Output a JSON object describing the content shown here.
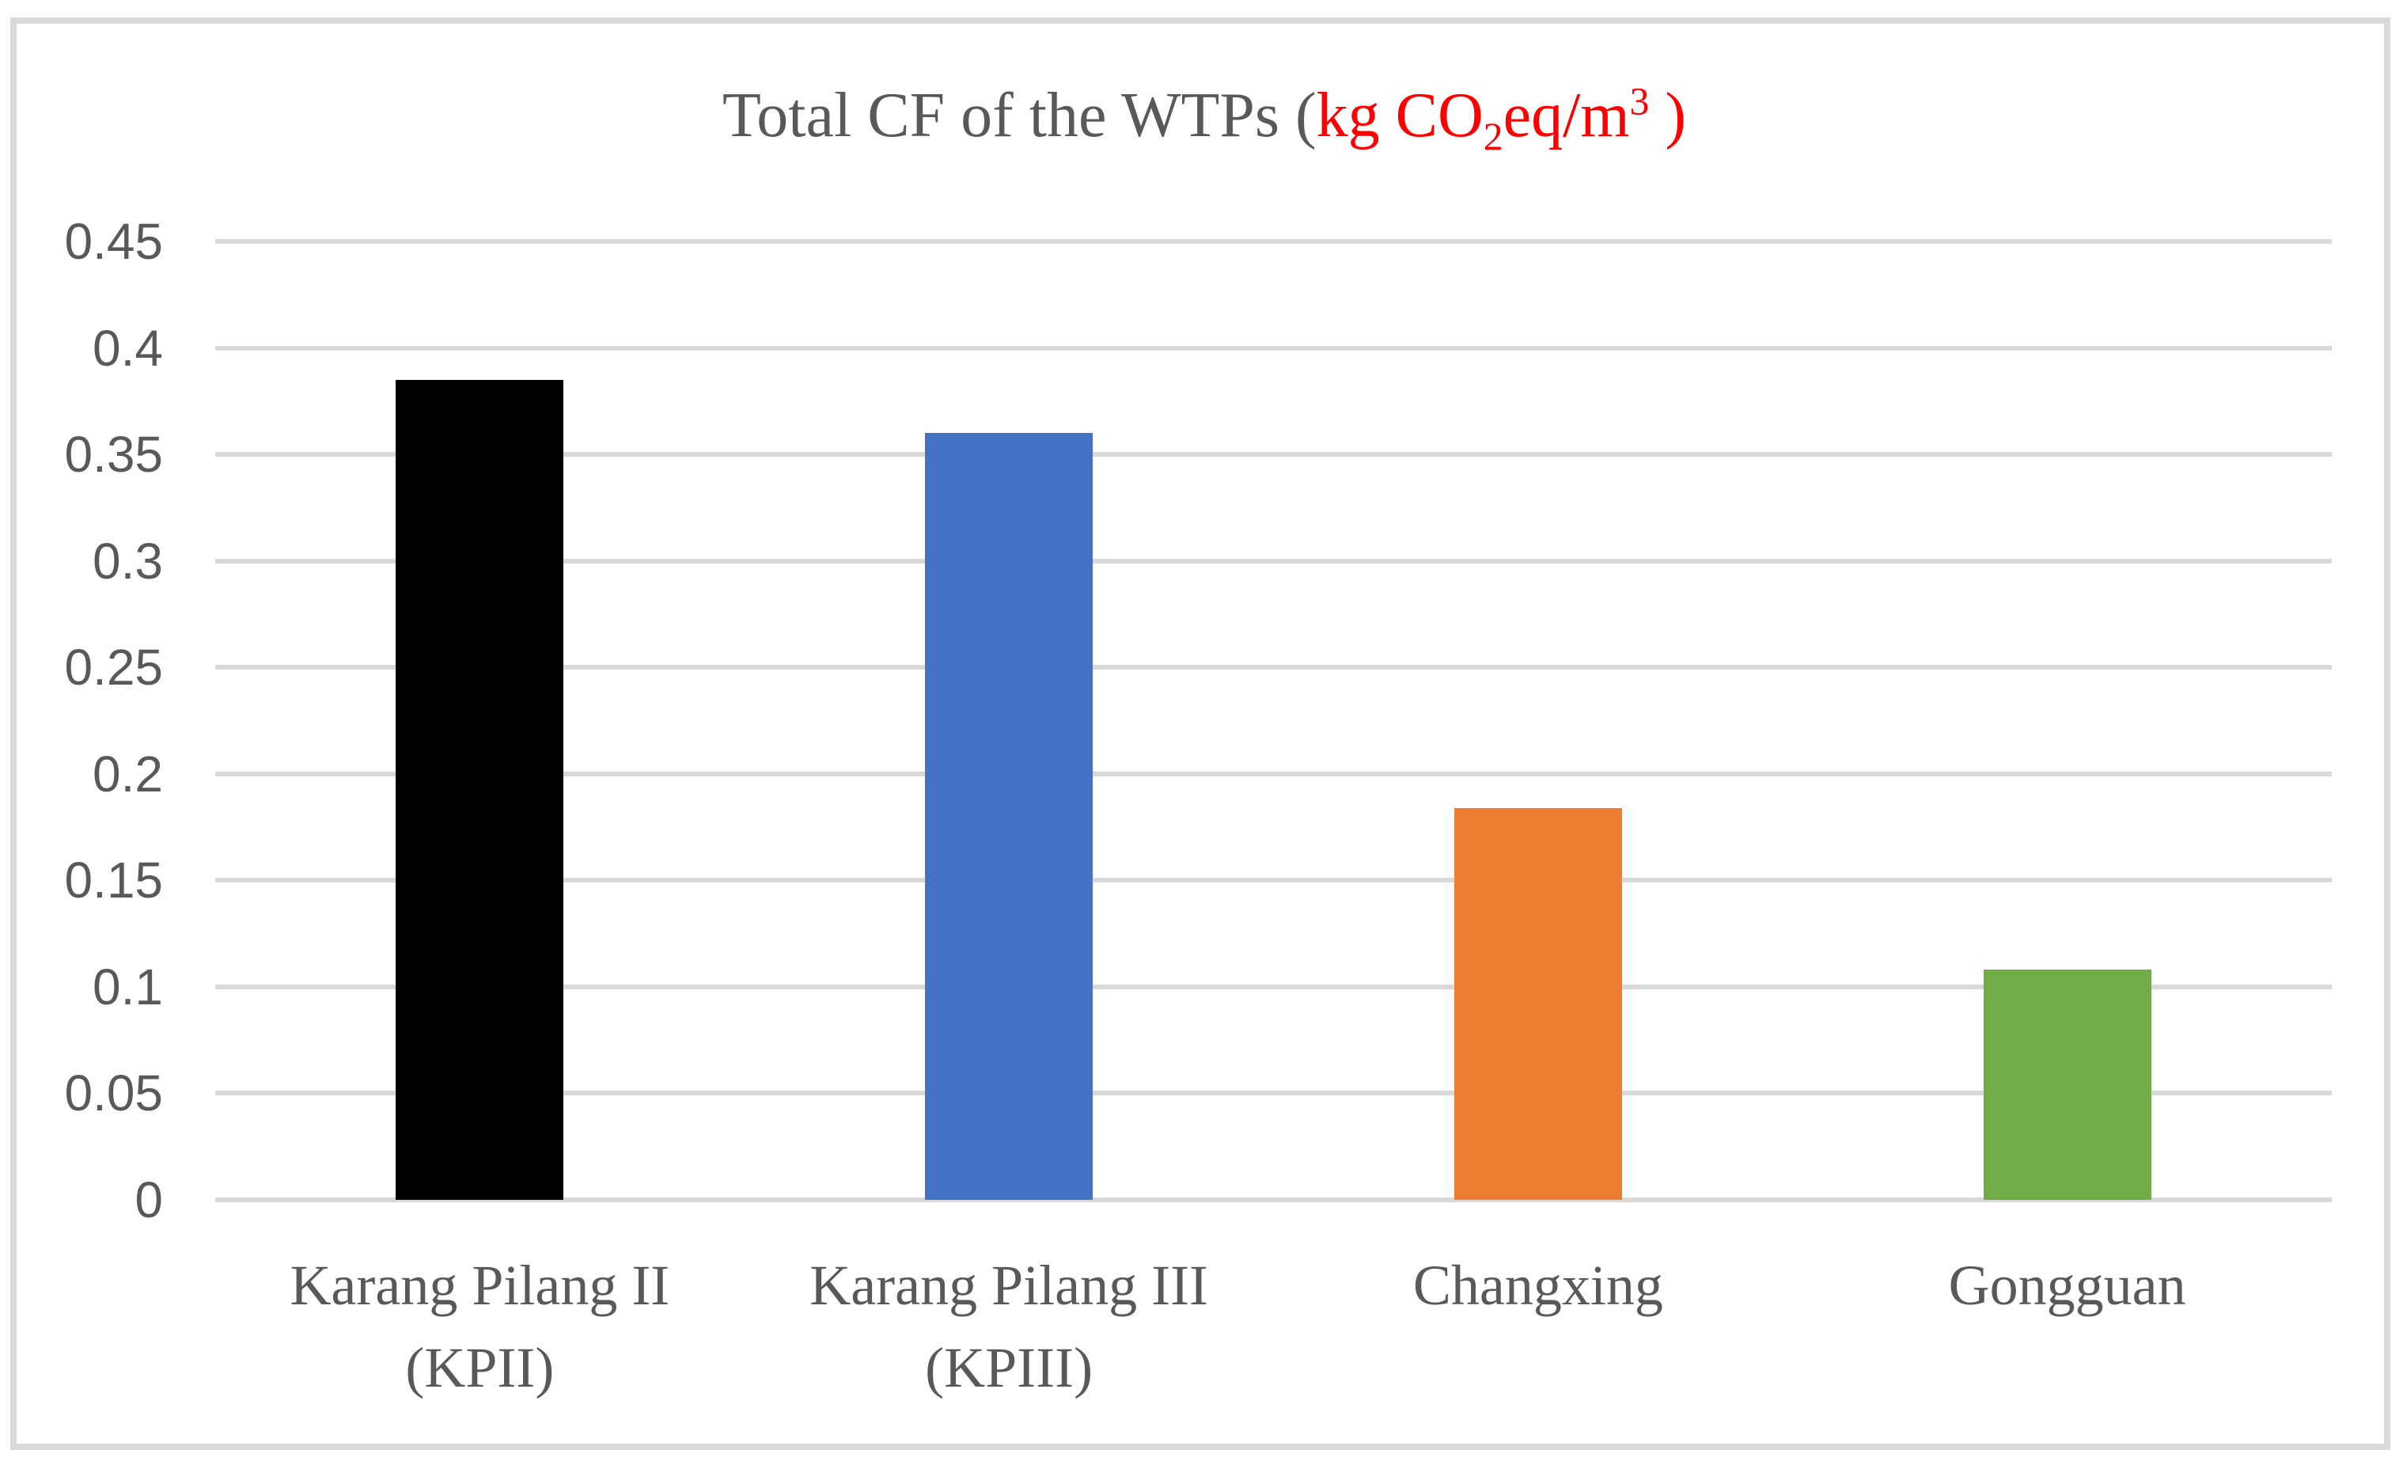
{
  "title": {
    "text_prefix": "Total CF of the WTPs (",
    "unit_part1": "kg CO",
    "unit_sub": "2",
    "unit_part2": "eq/m",
    "unit_sup": "3",
    "unit_suffix": " )",
    "prefix_color": "#595959",
    "unit_color": "#FF0000"
  },
  "chart_data": {
    "type": "bar",
    "title": "Total CF of the WTPs (kg CO2eq/m3)",
    "categories": [
      "Karang Pilang II (KPII)",
      "Karang Pilang III (KPIII)",
      "Changxing",
      "Gongguan"
    ],
    "values": [
      0.385,
      0.36,
      0.184,
      0.108
    ],
    "bar_colors": [
      "#000000",
      "#4472C4",
      "#ED7D31",
      "#70AD47"
    ],
    "xlabel": "",
    "ylabel": "",
    "ylim": [
      0,
      0.45
    ],
    "ytick_labels": [
      "0",
      "0.05",
      "0.1",
      "0.15",
      "0.2",
      "0.25",
      "0.3",
      "0.35",
      "0.4",
      "0.45"
    ],
    "grid": "horizontal",
    "legend_position": "none",
    "gridline_color": "#D9D9D9",
    "axis_label_color": "#595959",
    "border_color": "#D9D9D9",
    "background": "#FFFFFF"
  }
}
